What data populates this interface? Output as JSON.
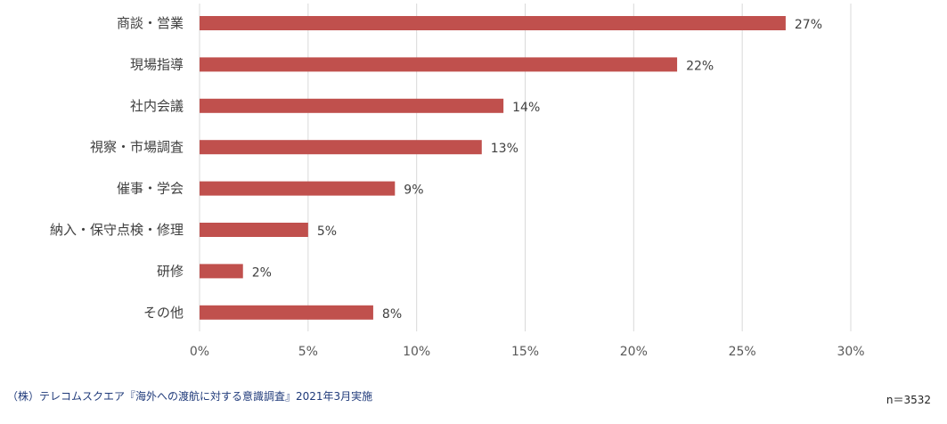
{
  "chart_data": {
    "type": "bar",
    "orientation": "horizontal",
    "categories": [
      "商談・営業",
      "現場指導",
      "社内会議",
      "視察・市場調査",
      "催事・学会",
      "納入・保守点検・修理",
      "研修",
      "その他"
    ],
    "values": [
      27,
      22,
      14,
      13,
      9,
      5,
      2,
      8
    ],
    "value_labels": [
      "27%",
      "22%",
      "14%",
      "13%",
      "9%",
      "5%",
      "2%",
      "8%"
    ],
    "xlim": [
      0,
      30
    ],
    "x_ticks": [
      0,
      5,
      10,
      15,
      20,
      25,
      30
    ],
    "x_tick_labels": [
      "0%",
      "5%",
      "10%",
      "15%",
      "20%",
      "25%",
      "30%"
    ],
    "grid": "vertical",
    "legend": "none",
    "bar_color": "#c0504d",
    "title": "",
    "xlabel": "",
    "ylabel": ""
  },
  "notes": {
    "source": "（株）テレコムスクエア『海外への渡航に対する意識調査』2021年3月実施",
    "sample": "n＝3532"
  }
}
